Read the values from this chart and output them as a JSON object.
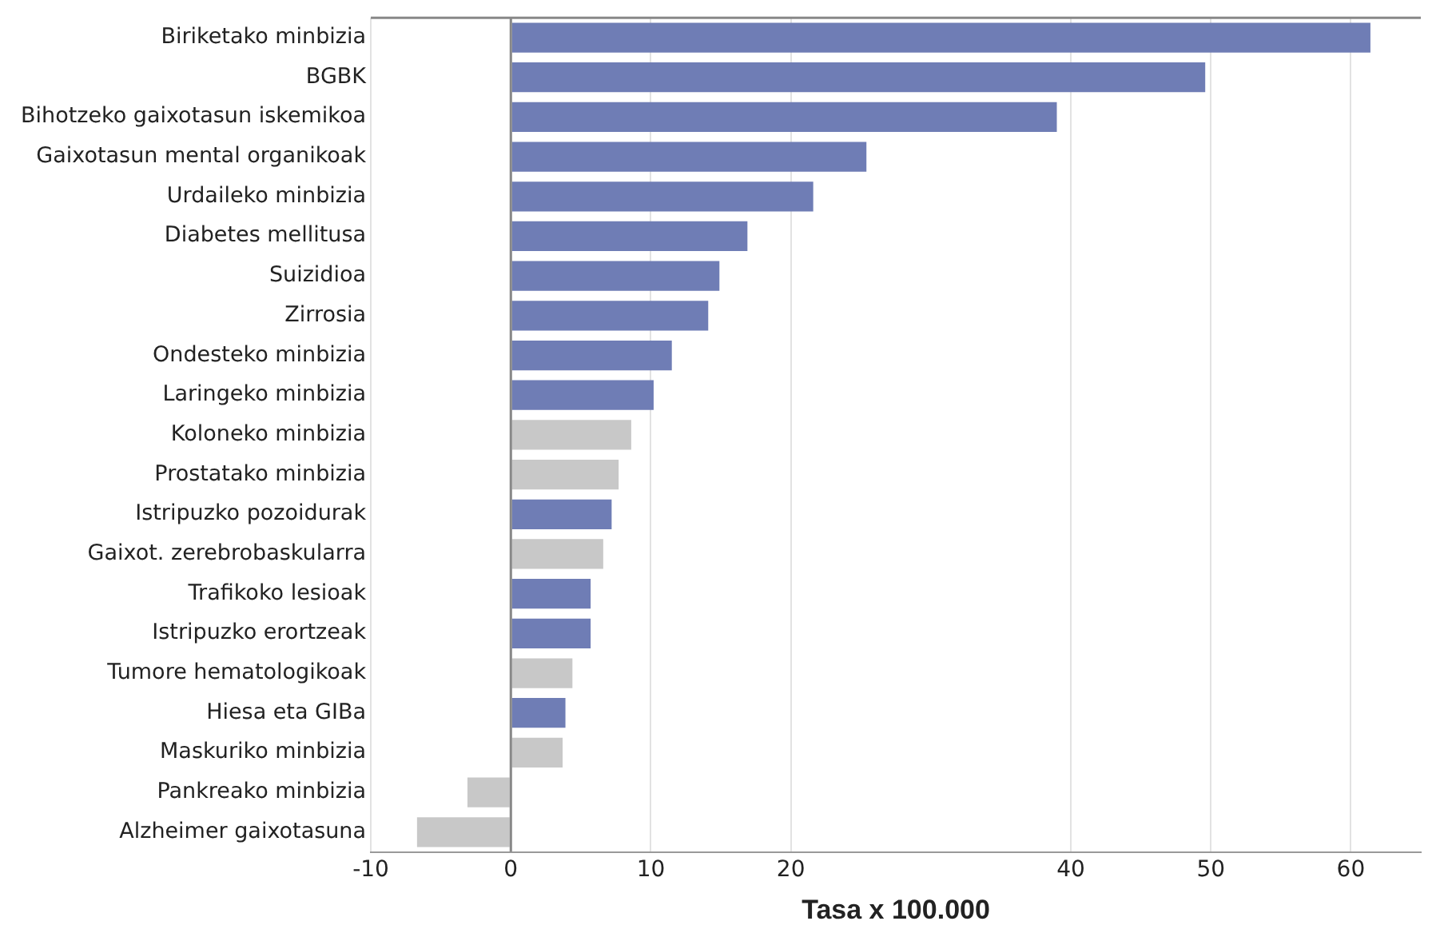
{
  "chart_data": {
    "type": "bar",
    "orientation": "horizontal",
    "xlabel": "Tasa x 100.000",
    "categories": [
      "Biriketako minbizia",
      "BGBK",
      "Bihotzeko gaixotasun iskemikoa",
      "Gaixotasun mental organikoak",
      "Urdaileko minbizia",
      "Diabetes mellitusa",
      "Suizidioa",
      "Zirrosia",
      "Ondesteko minbizia",
      "Laringeko minbizia",
      "Koloneko minbizia",
      "Prostatako minbizia",
      "Istripuzko pozoidurak",
      "Gaixot. zerebrobaskularra",
      "Trafikoko lesioak",
      "Istripuzko erortzeak",
      "Tumore hematologikoak",
      "Hiesa eta GIBa",
      "Maskuriko minbizia",
      "Pankreako minbizia",
      "Alzheimer gaixotasuna"
    ],
    "values": [
      61.4,
      49.6,
      39.0,
      25.4,
      21.6,
      16.9,
      14.9,
      14.1,
      11.5,
      10.2,
      8.6,
      7.7,
      7.2,
      6.6,
      5.7,
      5.7,
      4.4,
      3.9,
      3.7,
      -3.1,
      -6.7
    ],
    "colors": [
      "#6f7db5",
      "#6f7db5",
      "#6f7db5",
      "#6f7db5",
      "#6f7db5",
      "#6f7db5",
      "#6f7db5",
      "#6f7db5",
      "#6f7db5",
      "#6f7db5",
      "#c8c8c8",
      "#c8c8c8",
      "#6f7db5",
      "#c8c8c8",
      "#6f7db5",
      "#6f7db5",
      "#c8c8c8",
      "#6f7db5",
      "#c8c8c8",
      "#c8c8c8",
      "#c8c8c8"
    ],
    "xlim": [
      -10,
      65
    ],
    "xticks": [
      -10,
      0,
      10,
      20,
      40,
      50,
      60
    ],
    "grid": "x"
  }
}
